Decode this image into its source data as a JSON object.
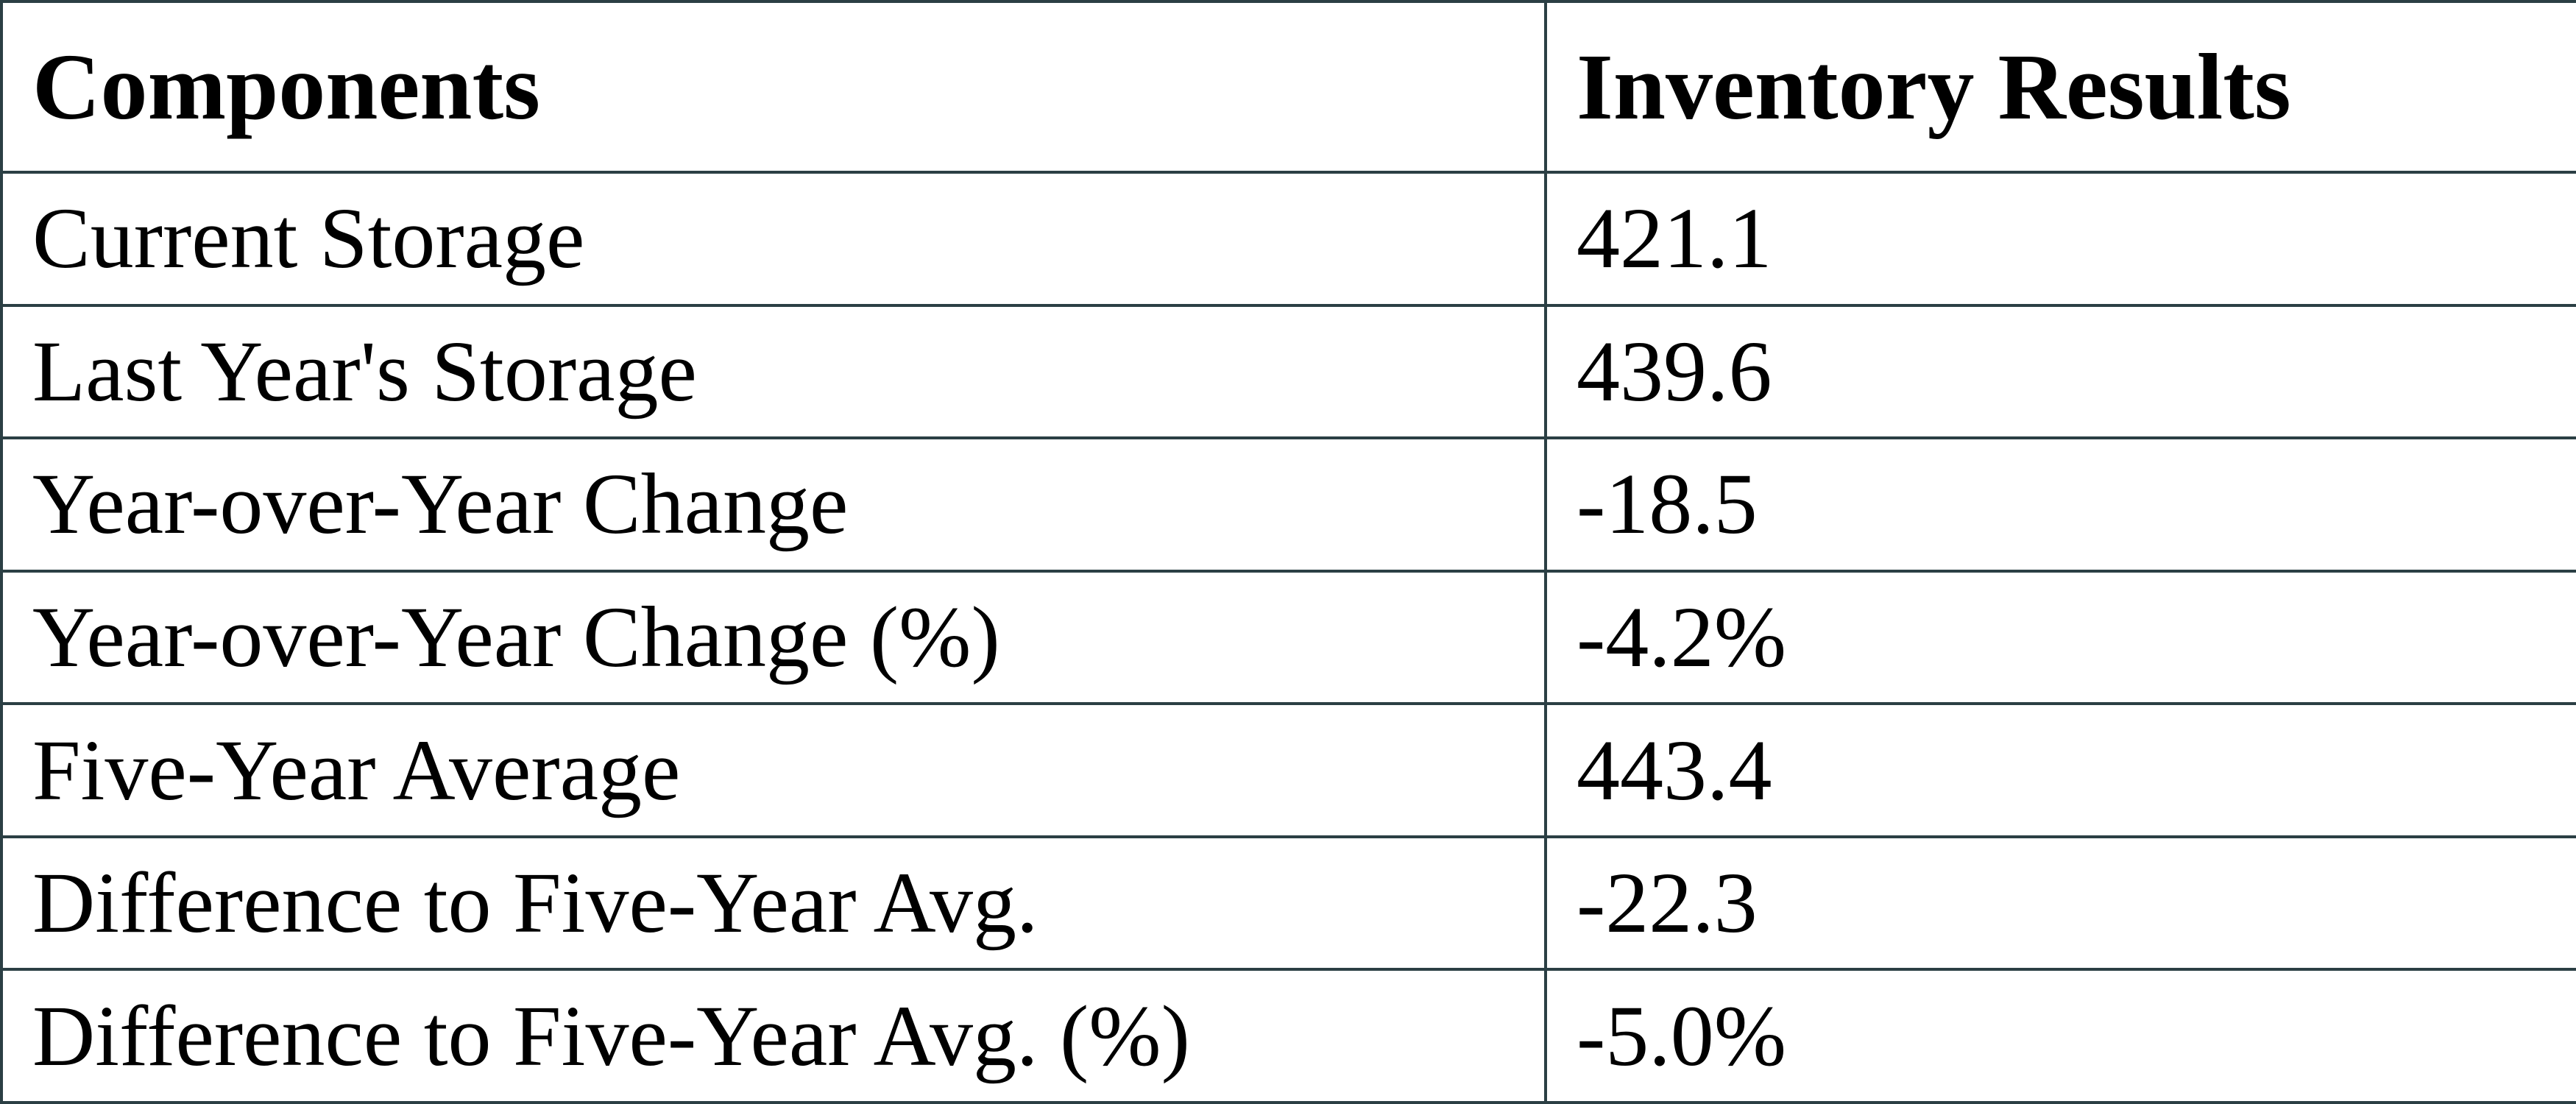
{
  "table": {
    "header": [
      "Components",
      "Inventory Results"
    ],
    "rows": [
      [
        "Current Storage",
        "421.1"
      ],
      [
        "Last Year's Storage",
        "439.6"
      ],
      [
        "Year-over-Year Change",
        "-18.5"
      ],
      [
        "Year-over-Year Change (%)",
        "-4.2%"
      ],
      [
        "Five-Year Average",
        "443.4"
      ],
      [
        "Difference to Five-Year Avg.",
        "-22.3"
      ],
      [
        "Difference to Five-Year Avg. (%)",
        "-5.0%"
      ]
    ]
  }
}
